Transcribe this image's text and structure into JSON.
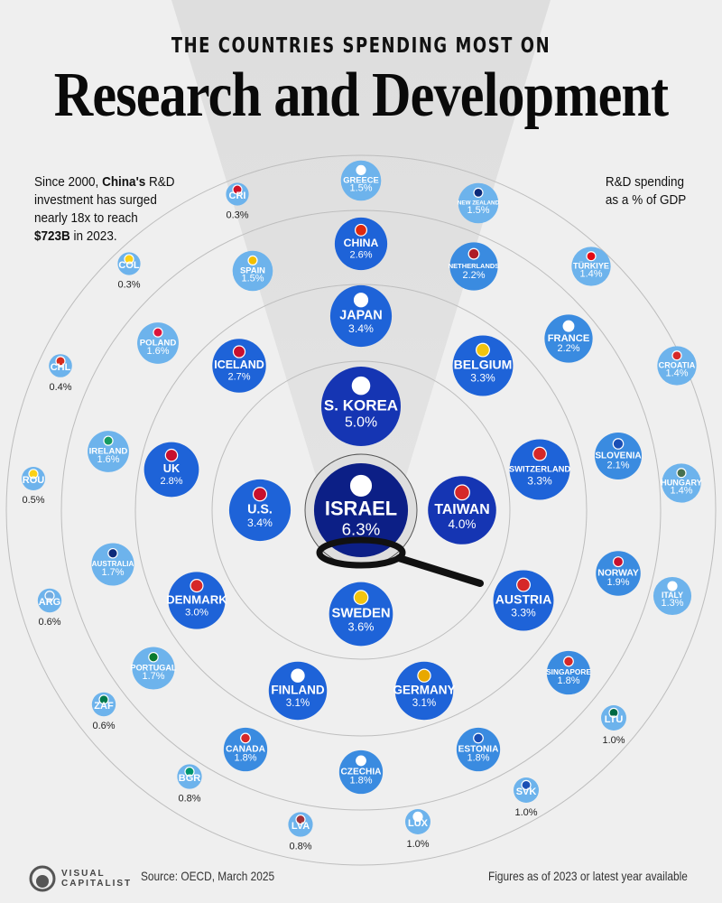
{
  "header": {
    "kicker": "THE COUNTRIES SPENDING MOST ON",
    "title": "Research and Development"
  },
  "note": {
    "line1_pre": "Since 2000, ",
    "line1_bold": "China's",
    "line1_post": " R&D",
    "line2": "investment has surged",
    "line3": "nearly 18x to reach",
    "line4_bold": "$723B",
    "line4_post": " in 2023."
  },
  "legend_note": {
    "line1": "R&D spending",
    "line2": "as a % of GDP"
  },
  "footer": {
    "logo_line1": "VISUAL",
    "logo_line2": "CAPITALIST",
    "source": "Source: OECD, March 2025",
    "note": "Figures as of 2023 or latest year available"
  },
  "colors": {
    "tier_top": "#0c1f86",
    "tier_high": "#1535b3",
    "tier_mid": "#1e63d8",
    "tier_low": "#3a8be0",
    "tier_lowest": "#6db3ec",
    "background": "#efefef",
    "ring": "#bdbdbd"
  },
  "chart_data": {
    "type": "bubble",
    "unit": "R&D spending as a % of GDP",
    "items": [
      {
        "label": "ISRAEL",
        "value": 6.3,
        "display": "6.3%"
      },
      {
        "label": "S. KOREA",
        "value": 5.0,
        "display": "5.0%"
      },
      {
        "label": "TAIWAN",
        "value": 4.0,
        "display": "4.0%"
      },
      {
        "label": "SWEDEN",
        "value": 3.6,
        "display": "3.6%"
      },
      {
        "label": "U.S.",
        "value": 3.4,
        "display": "3.4%"
      },
      {
        "label": "JAPAN",
        "value": 3.4,
        "display": "3.4%"
      },
      {
        "label": "BELGIUM",
        "value": 3.3,
        "display": "3.3%"
      },
      {
        "label": "SWITZERLAND",
        "value": 3.3,
        "display": "3.3%"
      },
      {
        "label": "AUSTRIA",
        "value": 3.3,
        "display": "3.3%"
      },
      {
        "label": "GERMANY",
        "value": 3.1,
        "display": "3.1%"
      },
      {
        "label": "FINLAND",
        "value": 3.1,
        "display": "3.1%"
      },
      {
        "label": "DENMARK",
        "value": 3.0,
        "display": "3.0%"
      },
      {
        "label": "UK",
        "value": 2.8,
        "display": "2.8%"
      },
      {
        "label": "ICELAND",
        "value": 2.7,
        "display": "2.7%"
      },
      {
        "label": "CHINA",
        "value": 2.6,
        "display": "2.6%"
      },
      {
        "label": "NETHERLANDS",
        "value": 2.2,
        "display": "2.2%"
      },
      {
        "label": "FRANCE",
        "value": 2.2,
        "display": "2.2%"
      },
      {
        "label": "SLOVENIA",
        "value": 2.1,
        "display": "2.1%"
      },
      {
        "label": "NORWAY",
        "value": 1.9,
        "display": "1.9%"
      },
      {
        "label": "SINGAPORE",
        "value": 1.8,
        "display": "1.8%"
      },
      {
        "label": "ESTONIA",
        "value": 1.8,
        "display": "1.8%"
      },
      {
        "label": "CZECHIA",
        "value": 1.8,
        "display": "1.8%"
      },
      {
        "label": "CANADA",
        "value": 1.8,
        "display": "1.8%"
      },
      {
        "label": "PORTUGAL",
        "value": 1.7,
        "display": "1.7%"
      },
      {
        "label": "AUSTRALIA",
        "value": 1.7,
        "display": "1.7%"
      },
      {
        "label": "IRELAND",
        "value": 1.6,
        "display": "1.6%"
      },
      {
        "label": "POLAND",
        "value": 1.6,
        "display": "1.6%"
      },
      {
        "label": "SPAIN",
        "value": 1.5,
        "display": "1.5%"
      },
      {
        "label": "GREECE",
        "value": 1.5,
        "display": "1.5%"
      },
      {
        "label": "NEW ZEALAND",
        "value": 1.5,
        "display": "1.5%"
      },
      {
        "label": "TÜRKIYE",
        "value": 1.4,
        "display": "1.4%"
      },
      {
        "label": "CROATIA",
        "value": 1.4,
        "display": "1.4%"
      },
      {
        "label": "HUNGARY",
        "value": 1.4,
        "display": "1.4%"
      },
      {
        "label": "ITALY",
        "value": 1.3,
        "display": "1.3%"
      },
      {
        "label": "LTU",
        "value": 1.0,
        "display": "1.0%"
      },
      {
        "label": "SVK",
        "value": 1.0,
        "display": "1.0%"
      },
      {
        "label": "LUX",
        "value": 1.0,
        "display": "1.0%"
      },
      {
        "label": "LVA",
        "value": 0.8,
        "display": "0.8%"
      },
      {
        "label": "BGR",
        "value": 0.8,
        "display": "0.8%"
      },
      {
        "label": "ZAF",
        "value": 0.6,
        "display": "0.6%"
      },
      {
        "label": "ARG",
        "value": 0.6,
        "display": "0.6%"
      },
      {
        "label": "ROU",
        "value": 0.5,
        "display": "0.5%"
      },
      {
        "label": "CHL",
        "value": 0.4,
        "display": "0.4%"
      },
      {
        "label": "COL",
        "value": 0.3,
        "display": "0.3%"
      },
      {
        "label": "CRI",
        "value": 0.3,
        "display": "0.3%"
      }
    ]
  }
}
